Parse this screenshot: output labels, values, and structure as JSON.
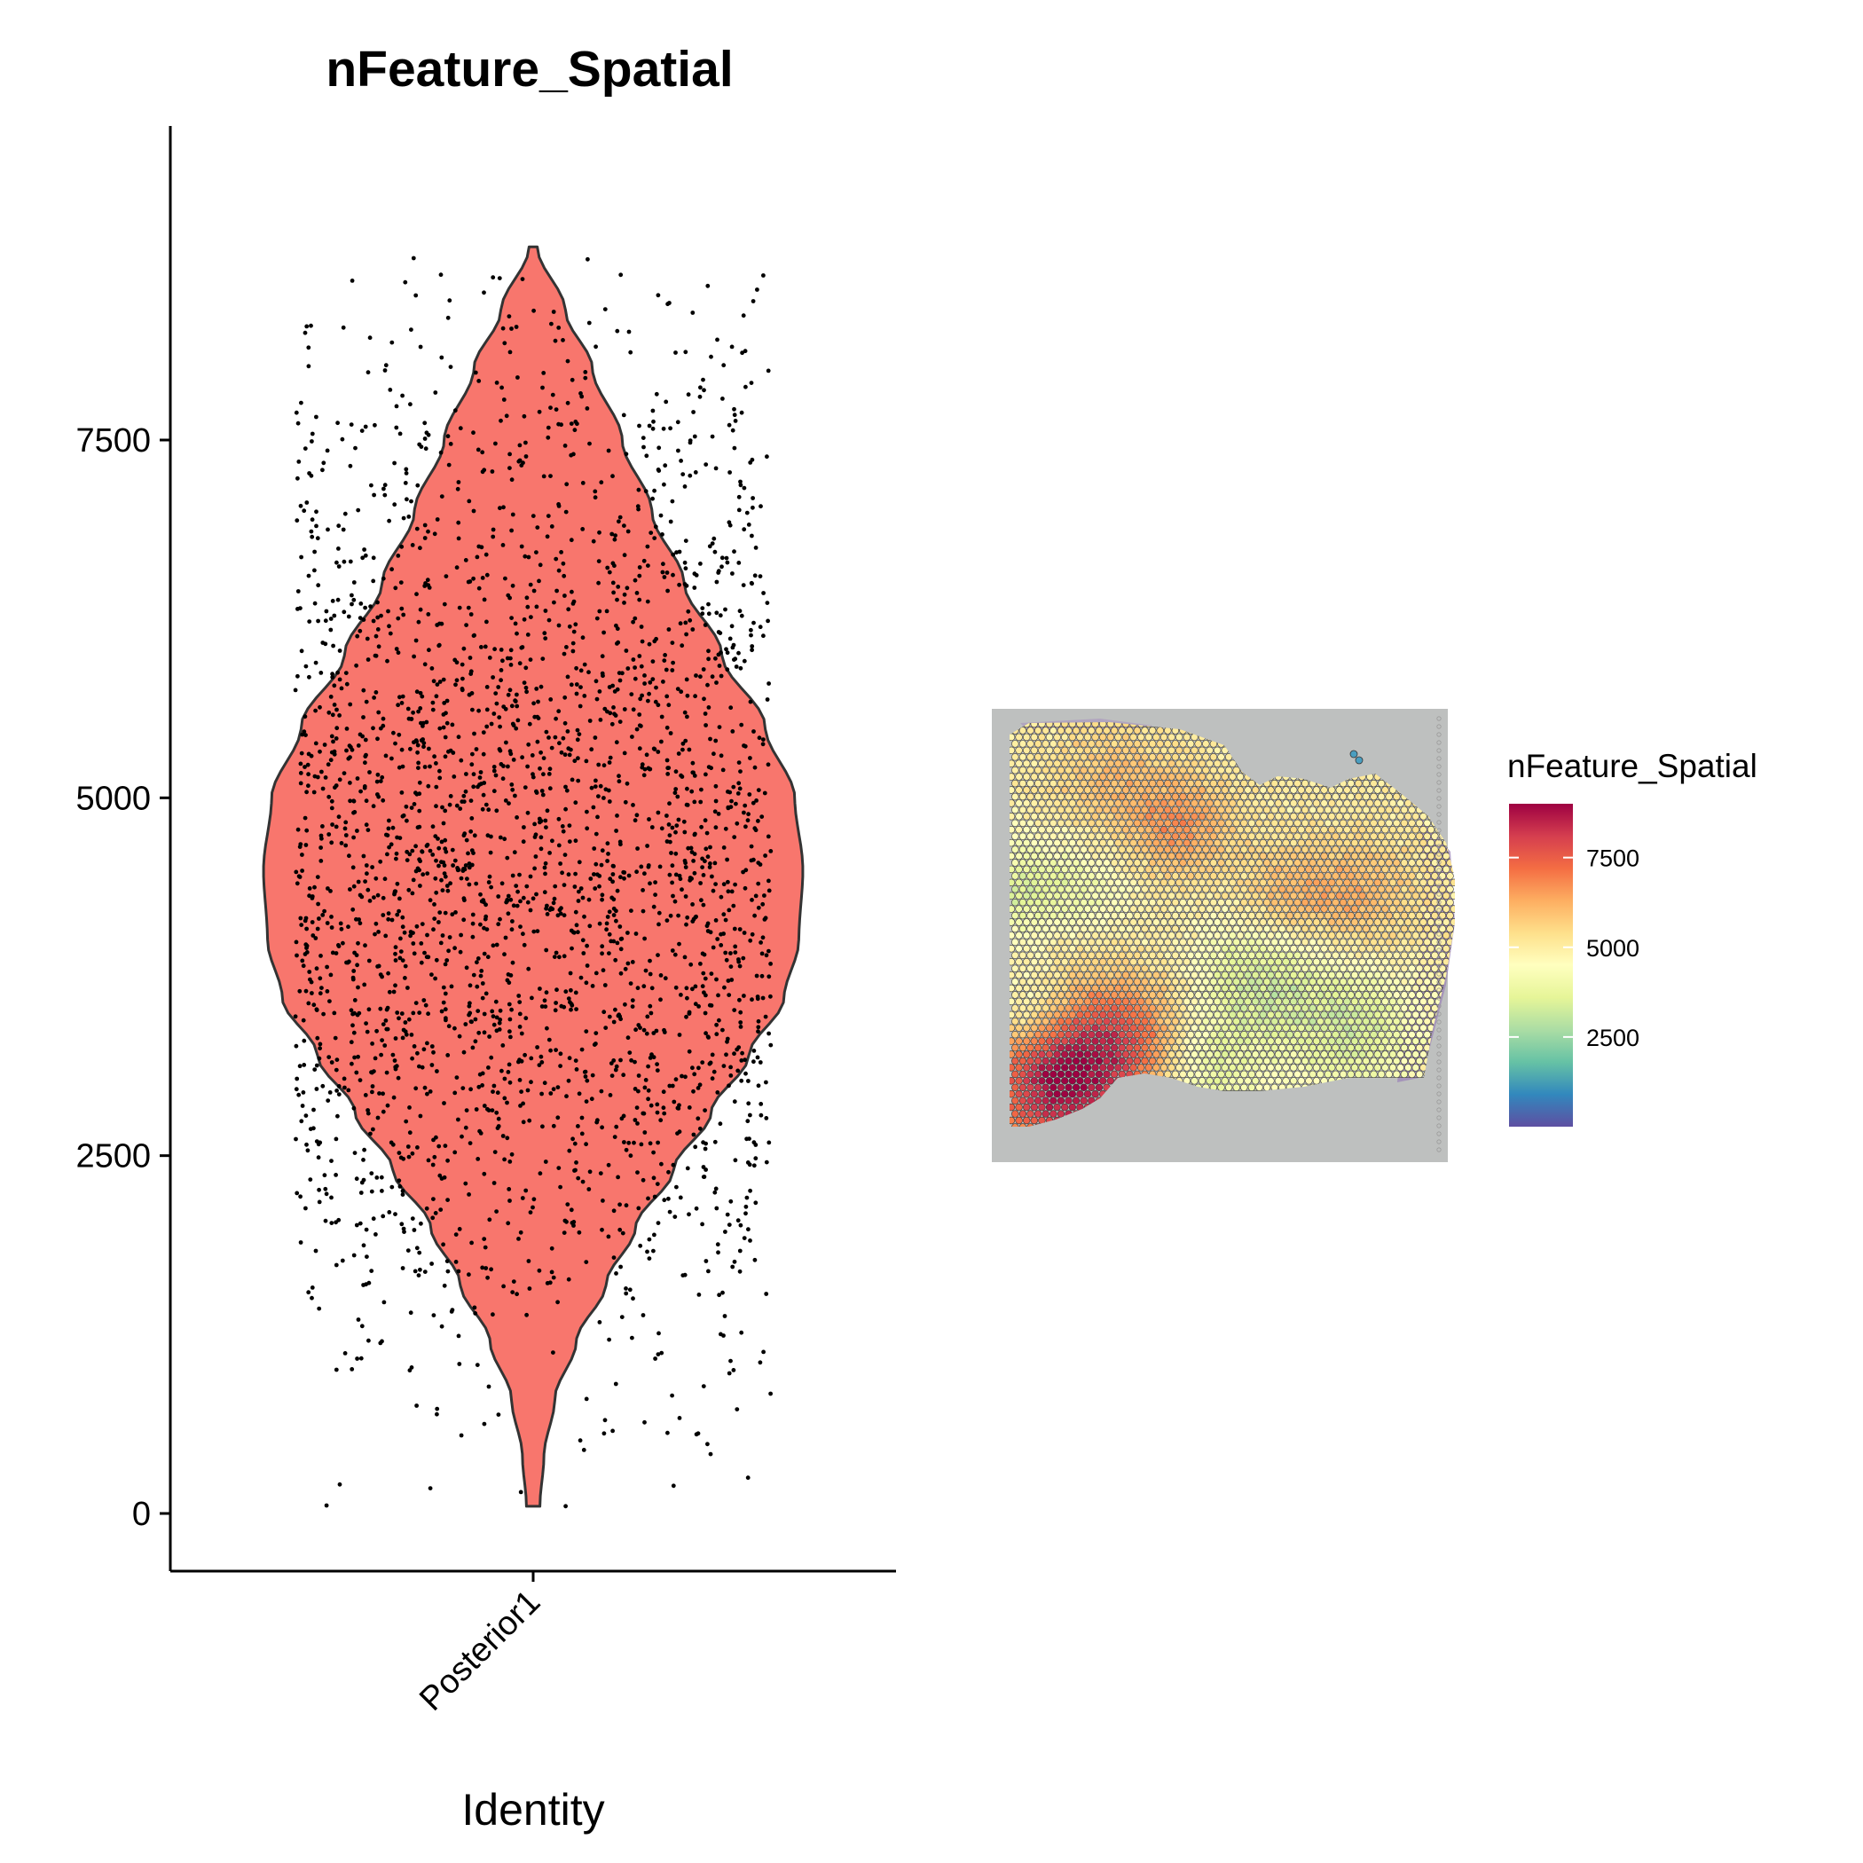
{
  "chart_data": [
    {
      "type": "violin",
      "title": "nFeature_Spatial",
      "xlabel": "Identity",
      "ylabel": "",
      "categories": [
        "Posterior1"
      ],
      "ylim": [
        -350,
        9700
      ],
      "yticks": [
        0,
        2500,
        5000,
        7500
      ],
      "ytick_labels": [
        "0",
        "2500",
        "5000",
        "7500"
      ],
      "fill_color": "#F8766D",
      "outline_color": "#333333",
      "point_color": "#000000",
      "violin": {
        "min": 50,
        "max": 8850,
        "density_profile": [
          [
            50,
            0.025
          ],
          [
            400,
            0.04
          ],
          [
            800,
            0.08
          ],
          [
            1200,
            0.16
          ],
          [
            1600,
            0.27
          ],
          [
            2000,
            0.38
          ],
          [
            2400,
            0.52
          ],
          [
            2800,
            0.66
          ],
          [
            3200,
            0.8
          ],
          [
            3600,
            0.93
          ],
          [
            4000,
            0.985
          ],
          [
            4500,
            1.0
          ],
          [
            5000,
            0.97
          ],
          [
            5500,
            0.86
          ],
          [
            6000,
            0.7
          ],
          [
            6500,
            0.56
          ],
          [
            7000,
            0.44
          ],
          [
            7500,
            0.33
          ],
          [
            8000,
            0.22
          ],
          [
            8400,
            0.12
          ],
          [
            8850,
            0.015
          ]
        ]
      },
      "n_points": 2700,
      "grid": false,
      "legend": "none"
    },
    {
      "type": "heatmap",
      "subtype": "spatial-feature-plot",
      "title": "",
      "legend_title": "nFeature_Spatial",
      "legend_placement": "right",
      "color_scale": "Spectral (reversed)",
      "colorbar_range": [
        0,
        9000
      ],
      "colorbar_ticks": [
        2500,
        5000,
        7500
      ],
      "colorbar_tick_labels": [
        "2500",
        "5000",
        "7500"
      ],
      "colors": [
        "#5E4FA2",
        "#3288BD",
        "#66C2A5",
        "#ABDDA4",
        "#E6F598",
        "#FFFFBF",
        "#FEE08B",
        "#FDAE61",
        "#F46D43",
        "#D53E4F",
        "#9E0142"
      ],
      "background_color": "#BEC0BF"
    }
  ]
}
